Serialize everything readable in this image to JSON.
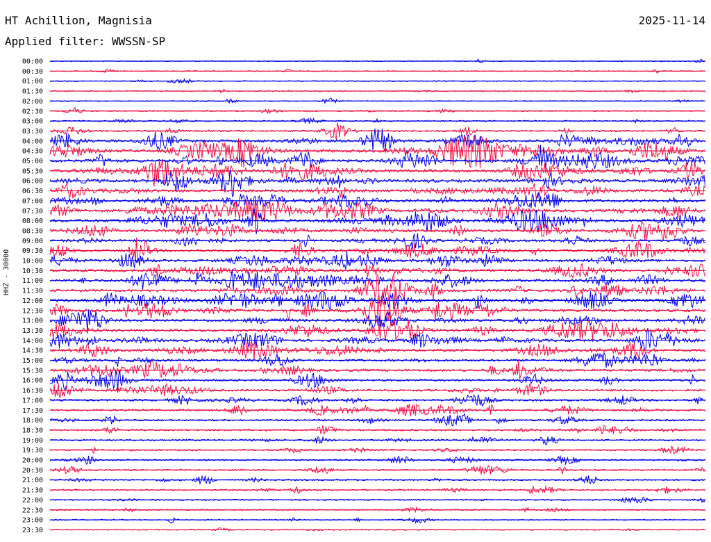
{
  "header": {
    "station": "HT Achillion, Magnisia",
    "date": "2025-11-14",
    "filter_label": "Applied filter: WWSSN-SP",
    "channel": "HHZ - 30000"
  },
  "colors": {
    "trace_a": "#0000ee",
    "trace_b": "#ee1144",
    "text": "#000000"
  },
  "chart_data": {
    "type": "line",
    "title": "HT Achillion, Magnisia",
    "subtitle": "Applied filter: WWSSN-SP",
    "ylabel": "HHZ - 30000",
    "xlabel": "",
    "grid": false,
    "legend": "none",
    "row_labels": [
      "00:00",
      "00:30",
      "01:00",
      "01:30",
      "02:00",
      "02:30",
      "03:00",
      "03:30",
      "04:00",
      "04:30",
      "05:00",
      "05:30",
      "06:00",
      "06:30",
      "07:00",
      "07:30",
      "08:00",
      "08:30",
      "09:00",
      "09:30",
      "10:00",
      "10:30",
      "11:00",
      "11:30",
      "12:00",
      "12:30",
      "13:00",
      "13:30",
      "14:00",
      "14:30",
      "15:00",
      "15:30",
      "16:00",
      "16:30",
      "17:00",
      "17:30",
      "18:00",
      "18:30",
      "19:00",
      "19:30",
      "20:00",
      "20:30",
      "21:00",
      "21:30",
      "22:00",
      "22:30",
      "23:00",
      "23:30"
    ],
    "row_activity": [
      0.03,
      0.08,
      0.09,
      0.09,
      0.1,
      0.12,
      0.2,
      0.35,
      0.75,
      0.9,
      0.95,
      0.95,
      0.85,
      0.8,
      0.85,
      0.8,
      0.85,
      0.75,
      0.65,
      0.7,
      0.65,
      0.75,
      0.85,
      0.8,
      0.9,
      0.85,
      0.8,
      0.8,
      0.75,
      0.7,
      0.65,
      0.7,
      0.6,
      0.55,
      0.5,
      0.5,
      0.4,
      0.35,
      0.35,
      0.3,
      0.3,
      0.28,
      0.3,
      0.25,
      0.2,
      0.2,
      0.15,
      0.08
    ]
  }
}
